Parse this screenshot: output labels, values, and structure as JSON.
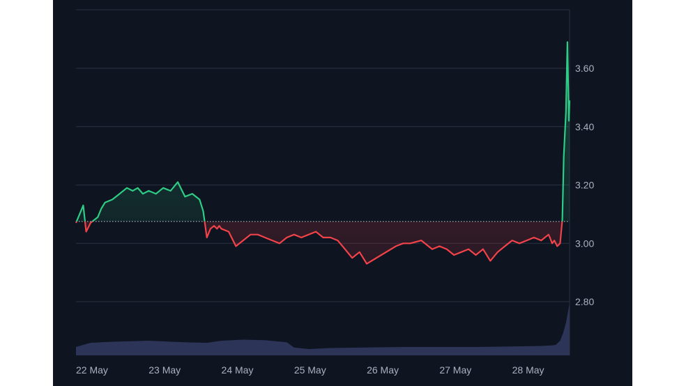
{
  "chart_data": {
    "type": "area",
    "title": "",
    "xlabel": "",
    "ylabel": "",
    "ylim": [
      2.66,
      3.82
    ],
    "baseline": 3.075,
    "grid": true,
    "colors": {
      "up": "#2ecc85",
      "down": "#f2424a",
      "volume": "#2c3558",
      "background": "#0e1420",
      "grid": "#2a3140"
    },
    "x_ticks": [
      "22 May",
      "23 May",
      "24 May",
      "25 May",
      "26 May",
      "27 May",
      "28 May"
    ],
    "y_ticks": [
      "3.60",
      "3.40",
      "3.20",
      "3.00",
      "2.80"
    ],
    "y_tick_values": [
      3.6,
      3.4,
      3.2,
      3.0,
      2.8
    ],
    "series": [
      {
        "x": [
          22.0,
          22.05,
          22.1,
          22.14,
          22.2,
          22.25,
          22.3,
          22.35,
          22.4,
          22.5,
          22.6,
          22.7,
          22.78,
          22.85,
          22.92,
          23.0,
          23.1,
          23.2,
          23.3,
          23.4,
          23.5,
          23.6,
          23.7,
          23.75,
          23.8,
          23.85,
          23.9,
          23.94,
          23.97,
          24.0,
          24.1,
          24.2,
          24.3,
          24.4,
          24.5,
          24.6,
          24.7,
          24.8,
          24.9,
          25.0,
          25.1,
          25.2,
          25.3,
          25.4,
          25.5,
          25.6,
          25.7,
          25.8,
          25.9,
          26.0,
          26.2,
          26.4,
          26.5,
          26.6,
          26.75,
          26.9,
          27.0,
          27.1,
          27.2,
          27.3,
          27.4,
          27.5,
          27.6,
          27.7,
          27.8,
          27.9,
          28.0,
          28.1,
          28.2,
          28.3,
          28.4,
          28.5,
          28.52,
          28.55,
          28.58,
          28.62,
          28.66,
          28.69,
          28.71,
          28.74,
          28.76,
          28.78,
          28.79
        ],
        "y": [
          3.07,
          3.1,
          3.13,
          3.04,
          3.07,
          3.08,
          3.09,
          3.12,
          3.14,
          3.15,
          3.17,
          3.19,
          3.18,
          3.19,
          3.17,
          3.18,
          3.17,
          3.19,
          3.18,
          3.21,
          3.16,
          3.17,
          3.15,
          3.11,
          3.02,
          3.05,
          3.06,
          3.05,
          3.06,
          3.05,
          3.04,
          2.99,
          3.01,
          3.03,
          3.03,
          3.02,
          3.01,
          3.0,
          3.02,
          3.03,
          3.02,
          3.03,
          3.04,
          3.02,
          3.02,
          3.01,
          2.98,
          2.95,
          2.97,
          2.93,
          2.96,
          2.99,
          3.0,
          3.0,
          3.01,
          2.98,
          2.99,
          2.98,
          2.96,
          2.97,
          2.98,
          2.96,
          2.98,
          2.94,
          2.97,
          2.99,
          3.01,
          3.0,
          3.01,
          3.02,
          3.01,
          3.03,
          3.02,
          3.0,
          3.01,
          2.99,
          3.0,
          3.08,
          3.3,
          3.45,
          3.69,
          3.42,
          3.49
        ]
      }
    ],
    "volume": {
      "x": [
        22.0,
        22.2,
        22.5,
        23.0,
        23.5,
        23.8,
        24.0,
        24.3,
        24.6,
        24.9,
        25.0,
        25.2,
        25.5,
        26.0,
        26.5,
        27.0,
        27.5,
        28.0,
        28.4,
        28.55,
        28.6,
        28.66,
        28.7,
        28.74,
        28.79
      ],
      "y": [
        0.16,
        0.24,
        0.26,
        0.28,
        0.25,
        0.24,
        0.28,
        0.3,
        0.29,
        0.25,
        0.15,
        0.12,
        0.14,
        0.15,
        0.16,
        0.16,
        0.16,
        0.17,
        0.18,
        0.19,
        0.2,
        0.28,
        0.42,
        0.62,
        1.0
      ]
    }
  }
}
